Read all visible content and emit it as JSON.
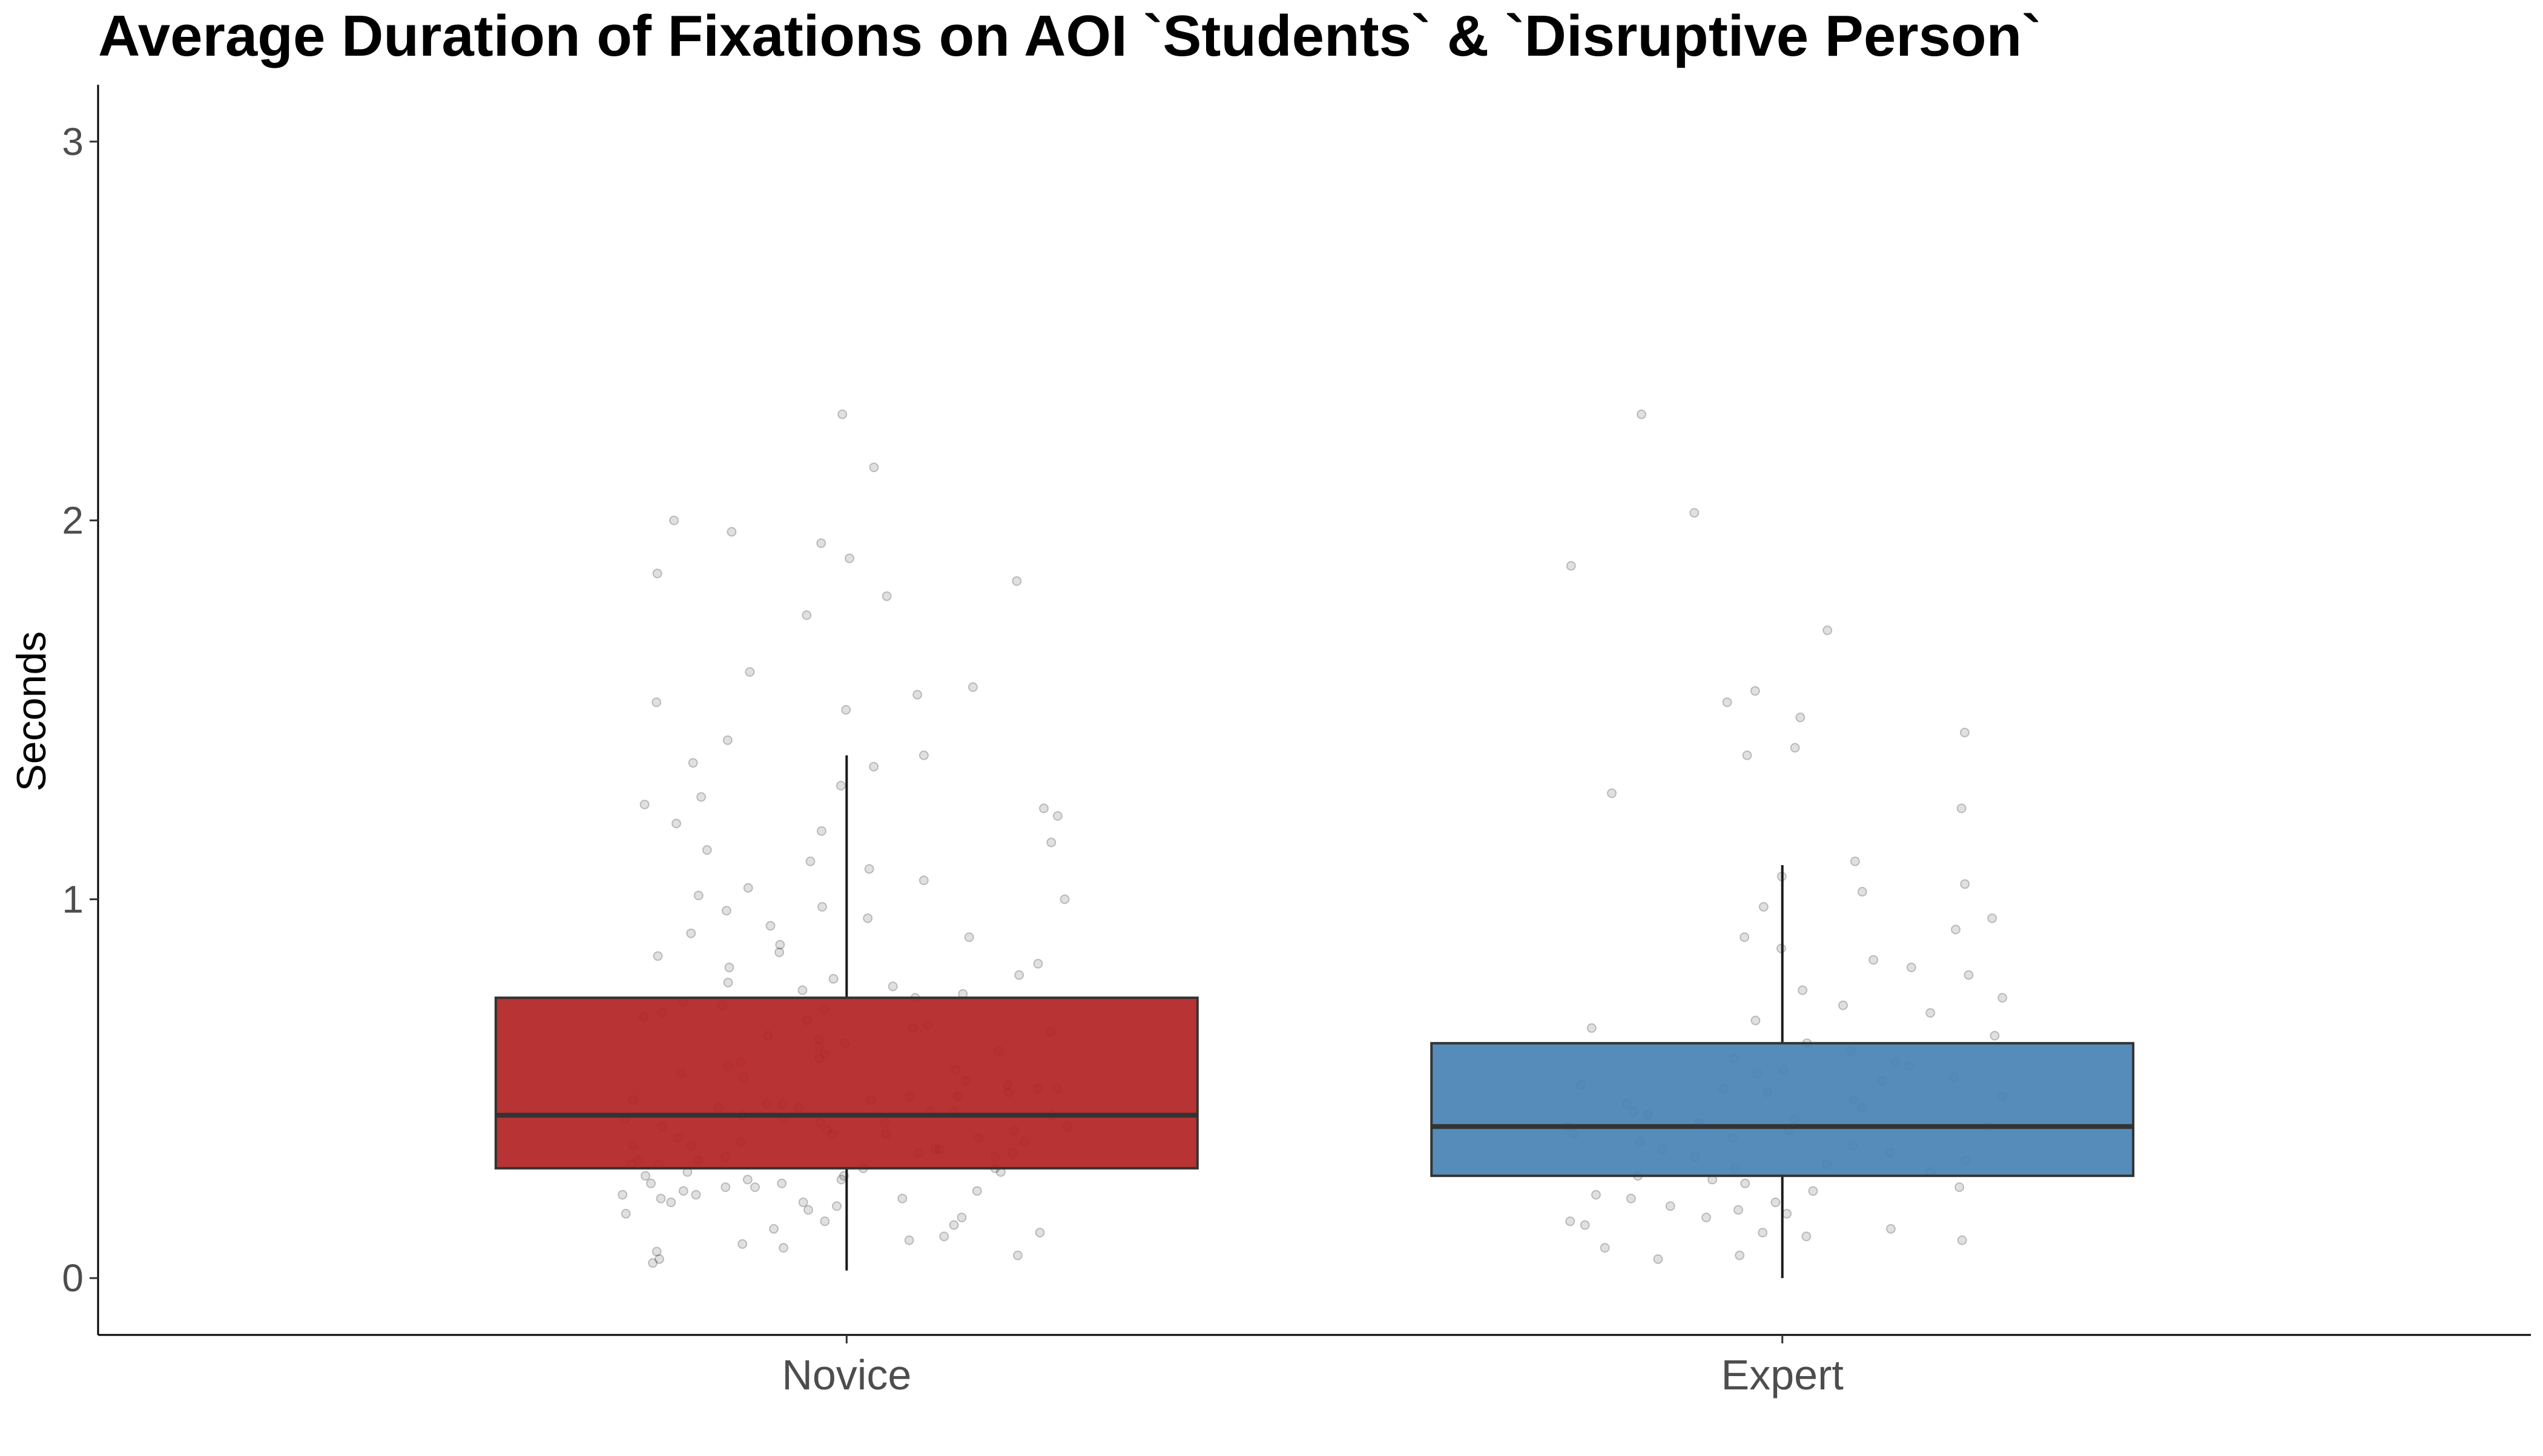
{
  "chart_data": {
    "type": "boxplot",
    "title": "Average Duration of Fixations on AOI `Students` & `Disruptive Person`",
    "xlabel": "",
    "ylabel": "Seconds",
    "ylim": [
      -0.15,
      3.15
    ],
    "yticks": [
      0,
      1,
      2,
      3
    ],
    "ytick_labels": [
      "0",
      "1",
      "2",
      "3"
    ],
    "categories": [
      "Novice",
      "Expert"
    ],
    "grid": false,
    "legend": "none",
    "boxes": [
      {
        "category": "Novice",
        "color": "#b22222",
        "whisker_low": 0.02,
        "q1": 0.29,
        "median": 0.43,
        "q3": 0.74,
        "whisker_high": 1.38
      },
      {
        "category": "Expert",
        "color": "#4682b4",
        "whisker_low": 0.0,
        "q1": 0.27,
        "median": 0.4,
        "q3": 0.62,
        "whisker_high": 1.09
      }
    ],
    "jitter_points": {
      "Novice": [
        2.28,
        2.14,
        2.0,
        1.97,
        1.94,
        1.9,
        1.86,
        1.84,
        1.8,
        1.75,
        1.6,
        1.56,
        1.54,
        1.52,
        1.5,
        1.42,
        1.38,
        1.36,
        1.35,
        1.3,
        1.27,
        1.25,
        1.24,
        1.22,
        1.2,
        1.18,
        1.15,
        1.13,
        1.1,
        1.08,
        1.05,
        1.03,
        1.01,
        1.0,
        0.98,
        0.97,
        0.95,
        0.93,
        0.91,
        0.9,
        0.88,
        0.86,
        0.85,
        0.83,
        0.82,
        0.8,
        0.79,
        0.78,
        0.77,
        0.76,
        0.75,
        0.74,
        0.73,
        0.72,
        0.71,
        0.7,
        0.69,
        0.68,
        0.67,
        0.66,
        0.65,
        0.64,
        0.63,
        0.62,
        0.61,
        0.6,
        0.59,
        0.58,
        0.57,
        0.56,
        0.55,
        0.54,
        0.53,
        0.52,
        0.51,
        0.5,
        0.5,
        0.49,
        0.48,
        0.48,
        0.47,
        0.47,
        0.46,
        0.46,
        0.45,
        0.45,
        0.44,
        0.44,
        0.43,
        0.43,
        0.42,
        0.42,
        0.41,
        0.41,
        0.4,
        0.4,
        0.39,
        0.39,
        0.38,
        0.38,
        0.37,
        0.37,
        0.36,
        0.36,
        0.35,
        0.35,
        0.34,
        0.34,
        0.33,
        0.33,
        0.32,
        0.32,
        0.31,
        0.31,
        0.3,
        0.3,
        0.29,
        0.29,
        0.28,
        0.28,
        0.27,
        0.27,
        0.26,
        0.26,
        0.25,
        0.25,
        0.24,
        0.24,
        0.23,
        0.23,
        0.22,
        0.22,
        0.21,
        0.21,
        0.2,
        0.2,
        0.19,
        0.18,
        0.17,
        0.16,
        0.15,
        0.14,
        0.13,
        0.12,
        0.11,
        0.1,
        0.09,
        0.08,
        0.07,
        0.06,
        0.05,
        0.04
      ],
      "Expert": [
        2.28,
        2.02,
        1.88,
        1.71,
        1.55,
        1.52,
        1.48,
        1.44,
        1.4,
        1.38,
        1.28,
        1.24,
        1.1,
        1.06,
        1.04,
        1.02,
        0.98,
        0.95,
        0.92,
        0.9,
        0.87,
        0.84,
        0.82,
        0.8,
        0.76,
        0.74,
        0.72,
        0.7,
        0.68,
        0.66,
        0.64,
        0.62,
        0.6,
        0.58,
        0.57,
        0.56,
        0.55,
        0.54,
        0.53,
        0.52,
        0.51,
        0.5,
        0.49,
        0.48,
        0.47,
        0.46,
        0.45,
        0.44,
        0.43,
        0.42,
        0.41,
        0.4,
        0.4,
        0.39,
        0.38,
        0.37,
        0.36,
        0.35,
        0.34,
        0.33,
        0.32,
        0.31,
        0.3,
        0.29,
        0.28,
        0.27,
        0.26,
        0.25,
        0.24,
        0.23,
        0.22,
        0.21,
        0.2,
        0.19,
        0.18,
        0.17,
        0.16,
        0.15,
        0.14,
        0.13,
        0.12,
        0.11,
        0.1,
        0.08,
        0.06,
        0.05
      ]
    }
  }
}
